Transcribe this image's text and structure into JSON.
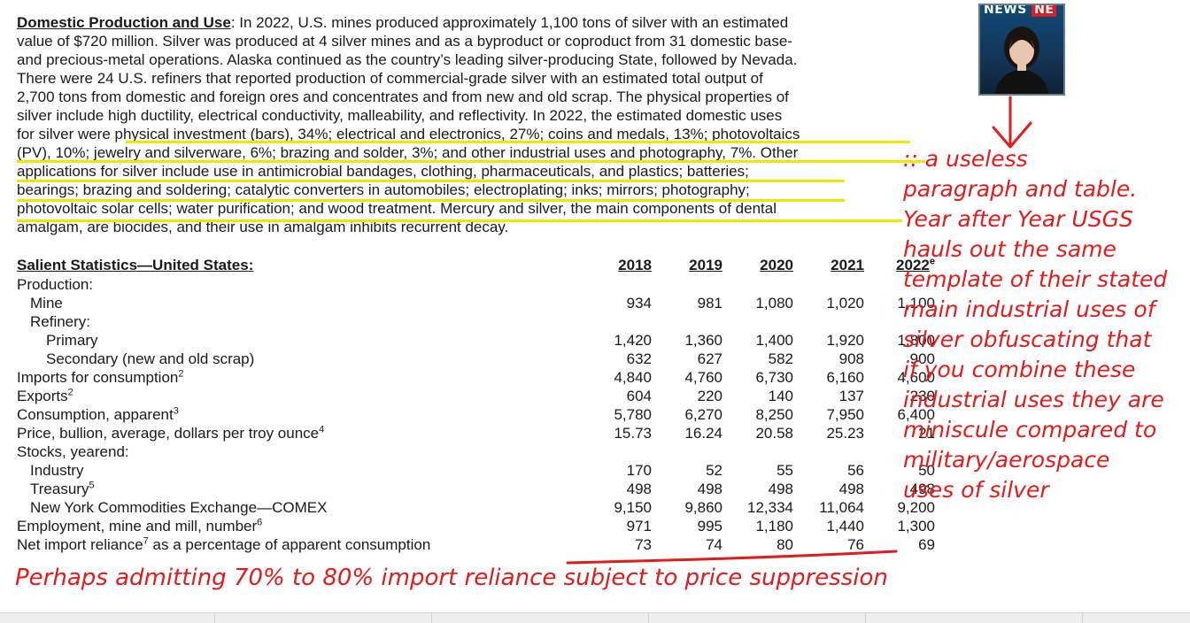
{
  "paragraph": {
    "heading": "Domestic Production and Use",
    "colon": ":",
    "line1": " In 2022, U.S. mines produced approximately 1,100 tons of silver with an estimated",
    "line2": "value of $720 million. Silver was produced at 4 silver mines and as a byproduct or coproduct from 31 domestic base-",
    "line3": "and precious-metal operations. Alaska continued as the country’s leading silver-producing State, followed by Nevada.",
    "line4": "There were 24 U.S. refiners that reported production of commercial-grade silver with an estimated total output of",
    "line5": "2,700 tons from domestic and foreign ores and concentrates and from new and old scrap. The physical properties of",
    "line6": "silver include high ductility, electrical conductivity, malleability, and reflectivity. In 2022, the estimated domestic uses",
    "line7": "for silver were physical investment (bars), 34%; electrical and electronics, 27%; coins and medals, 13%; photovoltaics",
    "line8": "(PV), 10%; jewelry and silverware, 6%; brazing and solder, 3%; and other industrial uses and photography, 7%. Other",
    "line9": "applications for silver include use in antimicrobial bandages, clothing, pharmaceuticals, and plastics; batteries;",
    "line10": "bearings; brazing and soldering; catalytic converters in automobiles; electroplating; inks; mirrors; photography;",
    "line11": "photovoltaic solar cells; water purification; and wood treatment. Mercury and silver, the main components of dental",
    "line12": "amalgam, are biocides, and their use in amalgam inhibits recurrent decay."
  },
  "table": {
    "title": "Salient Statistics—United States",
    "title_colon": ":",
    "years": [
      "2018",
      "2019",
      "2020",
      "2021",
      "2022"
    ],
    "estimate_mark": "e",
    "rows": [
      {
        "label": "Production:",
        "sup": "",
        "indent": 0,
        "values": [
          "",
          "",
          "",
          "",
          ""
        ]
      },
      {
        "label": "Mine",
        "sup": "",
        "indent": 1,
        "values": [
          "934",
          "981",
          "1,080",
          "1,020",
          "1,100"
        ]
      },
      {
        "label": "Refinery:",
        "sup": "",
        "indent": 1,
        "values": [
          "",
          "",
          "",
          "",
          ""
        ]
      },
      {
        "label": "Primary",
        "sup": "",
        "indent": 2,
        "values": [
          "1,420",
          "1,360",
          "1,400",
          "1,920",
          "1,800"
        ]
      },
      {
        "label": "Secondary (new and old scrap)",
        "sup": "",
        "indent": 2,
        "values": [
          "632",
          "627",
          "582",
          "908",
          "900"
        ]
      },
      {
        "label": "Imports for consumption",
        "sup": "2",
        "indent": 0,
        "values": [
          "4,840",
          "4,760",
          "6,730",
          "6,160",
          "4,600"
        ]
      },
      {
        "label": "Exports",
        "sup": "2",
        "indent": 0,
        "values": [
          "604",
          "220",
          "140",
          "137",
          "230"
        ]
      },
      {
        "label": "Consumption, apparent",
        "sup": "3",
        "indent": 0,
        "values": [
          "5,780",
          "6,270",
          "8,250",
          "7,950",
          "6,400"
        ]
      },
      {
        "label": "Price, bullion, average, dollars per troy ounce",
        "sup": "4",
        "indent": 0,
        "values": [
          "15.73",
          "16.24",
          "20.58",
          "25.23",
          "21"
        ]
      },
      {
        "label": "Stocks, yearend:",
        "sup": "",
        "indent": 0,
        "values": [
          "",
          "",
          "",
          "",
          ""
        ]
      },
      {
        "label": "Industry",
        "sup": "",
        "indent": 1,
        "values": [
          "170",
          "52",
          "55",
          "56",
          "50"
        ]
      },
      {
        "label": "Treasury",
        "sup": "5",
        "indent": 1,
        "values": [
          "498",
          "498",
          "498",
          "498",
          "498"
        ]
      },
      {
        "label": "New York Commodities Exchange—COMEX",
        "sup": "",
        "indent": 1,
        "values": [
          "9,150",
          "9,860",
          "12,334",
          "11,064",
          "9,200"
        ]
      },
      {
        "label": "Employment, mine and mill, number",
        "sup": "6",
        "indent": 0,
        "values": [
          "971",
          "995",
          "1,180",
          "1,440",
          "1,300"
        ]
      },
      {
        "label": "Net import reliance",
        "sup": "7",
        "label_tail": " as a percentage of apparent consumption",
        "indent": 0,
        "values": [
          "73",
          "74",
          "80",
          "76",
          "69"
        ]
      }
    ]
  },
  "annotations": {
    "side": [
      ":: a useless",
      "paragraph and table.",
      "Year after Year USGS",
      "hauls out the same",
      "template of their stated",
      "main industrial uses of",
      "silver obfuscating that",
      "if you combine these",
      "industrial uses they are",
      "miniscule compared to",
      "military/aerospace",
      "uses of silver"
    ],
    "bottom": "Perhaps admitting 70% to 80% import reliance subject to price suppression"
  },
  "thumbnail": {
    "tag_text": "NEWS",
    "tag_text_red": "NE"
  },
  "colors": {
    "annotation_red": "#e21b1b",
    "highlight_yellow": "#f2e600",
    "text": "#1a1a1a"
  }
}
